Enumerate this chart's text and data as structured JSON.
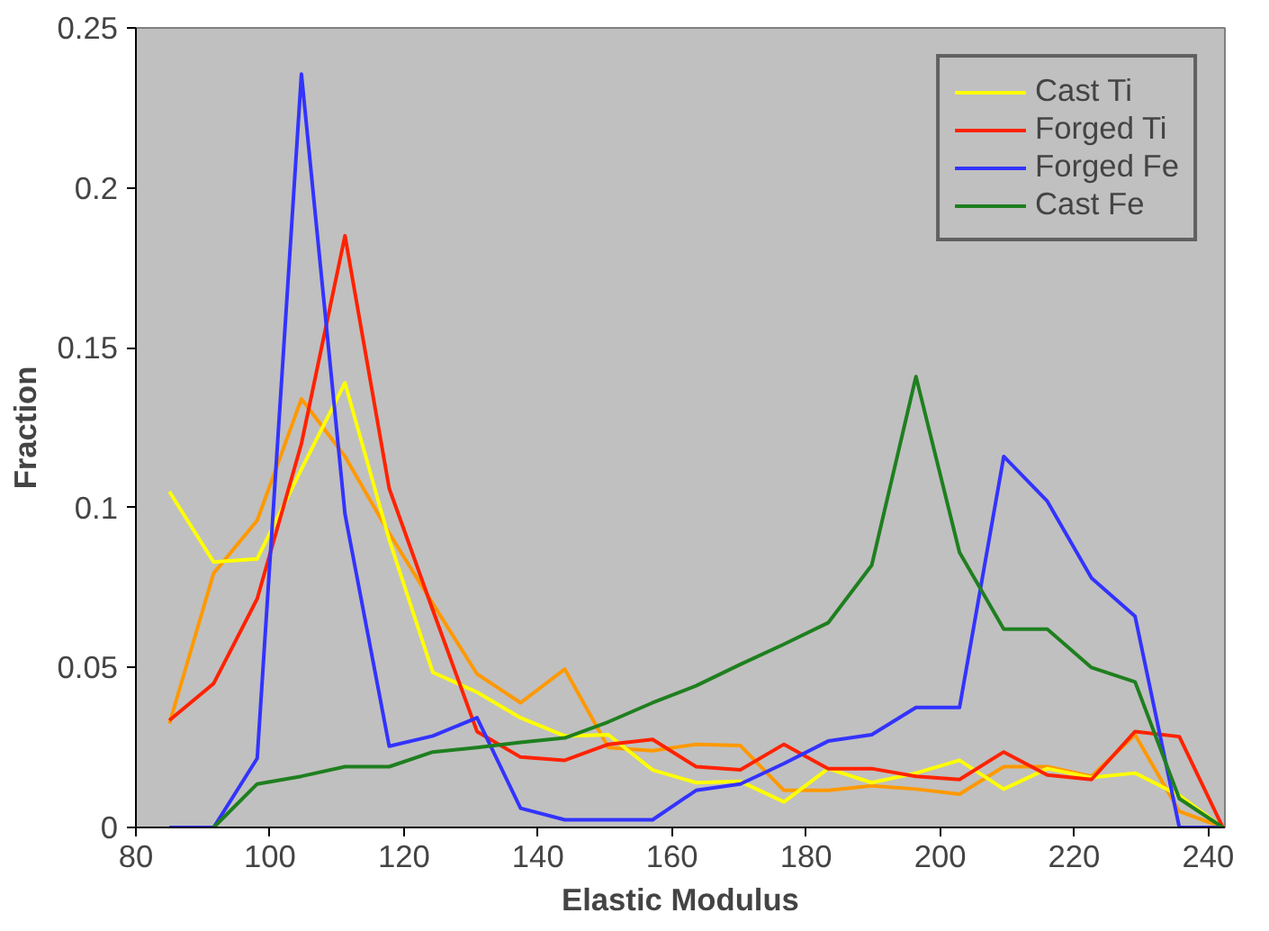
{
  "chart_data": {
    "type": "line",
    "xlabel": "Elastic Modulus",
    "ylabel": "Fraction",
    "x": [
      85,
      91.6,
      98.1,
      104.7,
      111.2,
      117.8,
      124.3,
      130.9,
      137.4,
      144,
      150.5,
      157.1,
      163.6,
      170.2,
      176.7,
      183.3,
      189.8,
      196.4,
      202.9,
      209.5,
      216,
      222.6,
      229.1,
      235.7,
      242.2
    ],
    "series": [
      {
        "name": "Cast Ti",
        "color": "#ff9900",
        "values": [
          0.0325,
          0.0795,
          0.096,
          0.134,
          0.116,
          0.092,
          0.07,
          0.048,
          0.039,
          0.0495,
          0.025,
          0.024,
          0.026,
          0.0256,
          0.0116,
          0.0116,
          0.013,
          0.012,
          0.0104,
          0.019,
          0.019,
          0.016,
          0.029,
          0.005,
          0
        ]
      },
      {
        "color": "#ffff00",
        "values": [
          0.105,
          0.083,
          0.084,
          0.112,
          0.139,
          0.09,
          0.0485,
          0.0423,
          0.0343,
          0.0286,
          0.029,
          0.018,
          0.014,
          0.0144,
          0.008,
          0.0184,
          0.014,
          0.017,
          0.021,
          0.012,
          0.0184,
          0.0156,
          0.017,
          0.01,
          0
        ]
      },
      {
        "name": "Forged Ti",
        "color": "#ff2200",
        "values": [
          0.0335,
          0.045,
          0.0715,
          0.12,
          0.185,
          0.106,
          0.068,
          0.03,
          0.022,
          0.021,
          0.026,
          0.0275,
          0.019,
          0.018,
          0.026,
          0.0184,
          0.0184,
          0.016,
          0.015,
          0.0236,
          0.0164,
          0.015,
          0.03,
          0.0284,
          0
        ]
      },
      {
        "name": "Forged Fe",
        "color": "#3333ff",
        "values": [
          0,
          0,
          0.0216,
          0.2356,
          0.098,
          0.0254,
          0.0286,
          0.0343,
          0.006,
          0.0024,
          0.0024,
          0.0024,
          0.0116,
          0.0136,
          0.02,
          0.027,
          0.029,
          0.0375,
          0.0375,
          0.116,
          0.102,
          0.078,
          0.066,
          0,
          0
        ]
      },
      {
        "name": "Cast Fe",
        "color": "#1f7f1f",
        "values": [
          null,
          0,
          0.0136,
          0.016,
          0.019,
          0.019,
          0.0236,
          0.025,
          0.0266,
          0.028,
          0.033,
          0.039,
          0.0443,
          0.051,
          0.0573,
          0.064,
          0.082,
          0.141,
          0.086,
          0.062,
          0.062,
          0.05,
          0.0455,
          0.009,
          0
        ]
      }
    ],
    "xlim": [
      80,
      242.5
    ],
    "ylim": [
      0,
      0.25
    ],
    "xticks": [
      80,
      100,
      120,
      140,
      160,
      180,
      200,
      220,
      240
    ],
    "yticks": [
      0,
      0.05,
      0.1,
      0.15,
      0.2,
      0.25
    ],
    "grid": false,
    "legend": "top right"
  }
}
